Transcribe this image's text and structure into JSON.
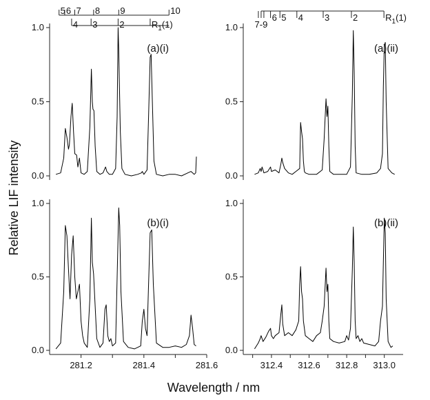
{
  "figure": {
    "ylabel": "Relative LIF intensity",
    "xlabel": "Wavelength / nm"
  },
  "chart_data": [
    {
      "type": "line",
      "panel": "(a)(i)",
      "xlim": [
        281.1,
        281.6
      ],
      "ylim": [
        0.0,
        1.0
      ],
      "y_ticks": [
        0.0,
        0.5,
        1.0
      ],
      "y_tick_labels": [
        "0.0",
        "0.5",
        "1.0"
      ],
      "x_ticks": [],
      "x_tick_labels": [],
      "band_labels": {
        "upper": [
          {
            "label": "5",
            "x": 281.13
          },
          {
            "label": "6",
            "x": 281.148
          },
          {
            "label": "7",
            "x": 281.18
          },
          {
            "label": "8",
            "x": 281.24
          },
          {
            "label": "9",
            "x": 281.32
          },
          {
            "label": "10",
            "x": 281.48
          }
        ],
        "lower": [
          {
            "label": "4",
            "x": 281.17
          },
          {
            "label": "3",
            "x": 281.232
          },
          {
            "label": "2",
            "x": 281.318
          },
          {
            "label": "R1(1)",
            "x": 281.42
          }
        ]
      },
      "series": [
        {
          "x": [
            281.12,
            281.135,
            281.145,
            281.15,
            281.155,
            281.16,
            281.163,
            281.168,
            281.172,
            281.176,
            281.18,
            281.186,
            281.19,
            281.195,
            281.2,
            281.21,
            281.22,
            281.228,
            281.233,
            281.236,
            281.238,
            281.241,
            281.245,
            281.25,
            281.26,
            281.27,
            281.278,
            281.282,
            281.29,
            281.3,
            281.31,
            281.315,
            281.318,
            281.32,
            281.325,
            281.33,
            281.34,
            281.36,
            281.38,
            281.392,
            281.395,
            281.4,
            281.41,
            281.415,
            281.42,
            281.423,
            281.427,
            281.432,
            281.44,
            281.46,
            281.48,
            281.5,
            281.52,
            281.54,
            281.55,
            281.56,
            281.565,
            281.567
          ],
          "y": [
            0.01,
            0.02,
            0.12,
            0.32,
            0.26,
            0.18,
            0.21,
            0.4,
            0.49,
            0.3,
            0.15,
            0.14,
            0.06,
            0.12,
            0.02,
            0.01,
            0.03,
            0.33,
            0.72,
            0.5,
            0.45,
            0.44,
            0.2,
            0.03,
            0.01,
            0.02,
            0.06,
            0.03,
            0.01,
            0.01,
            0.05,
            0.4,
            1.0,
            0.85,
            0.3,
            0.05,
            0.01,
            0.0,
            0.01,
            0.02,
            0.03,
            0.01,
            0.04,
            0.4,
            0.8,
            0.82,
            0.5,
            0.1,
            0.01,
            0.0,
            0.01,
            0.01,
            0.0,
            0.02,
            0.03,
            0.01,
            0.02,
            0.13
          ]
        }
      ]
    },
    {
      "type": "line",
      "panel": "(a)(ii)",
      "xlim": [
        312.25,
        313.1
      ],
      "ylim": [
        0.0,
        1.0
      ],
      "y_ticks": [
        0.0,
        0.5,
        1.0
      ],
      "y_tick_labels": [
        "0.0",
        "0.5",
        "1.0"
      ],
      "x_ticks": [],
      "x_tick_labels": [],
      "band_labels": {
        "upper": [
          {
            "label": "7-9",
            "x": 312.345
          },
          {
            "label": "6",
            "x": 312.395
          },
          {
            "label": "5",
            "x": 312.445
          },
          {
            "label": "4",
            "x": 312.535
          },
          {
            "label": "3",
            "x": 312.675
          },
          {
            "label": "2",
            "x": 312.825
          },
          {
            "label": "R1(1)",
            "x": 312.998
          }
        ]
      },
      "series": [
        {
          "x": [
            312.31,
            312.33,
            312.34,
            312.345,
            312.35,
            312.36,
            312.38,
            312.395,
            312.4,
            312.42,
            312.44,
            312.45,
            312.455,
            312.46,
            312.47,
            312.49,
            312.51,
            312.53,
            312.55,
            312.555,
            312.56,
            312.565,
            312.57,
            312.575,
            312.58,
            312.6,
            312.64,
            312.67,
            312.68,
            312.69,
            312.695,
            312.7,
            312.705,
            312.71,
            312.73,
            312.76,
            312.8,
            312.82,
            312.83,
            312.835,
            312.84,
            312.845,
            312.85,
            312.88,
            312.92,
            312.96,
            312.98,
            312.99,
            312.995,
            313.0,
            313.005,
            313.01,
            313.02,
            313.04,
            313.055
          ],
          "y": [
            0.01,
            0.02,
            0.05,
            0.03,
            0.06,
            0.02,
            0.03,
            0.06,
            0.03,
            0.04,
            0.02,
            0.08,
            0.12,
            0.09,
            0.05,
            0.02,
            0.01,
            0.03,
            0.05,
            0.36,
            0.3,
            0.25,
            0.1,
            0.03,
            0.02,
            0.01,
            0.01,
            0.04,
            0.25,
            0.52,
            0.4,
            0.47,
            0.2,
            0.03,
            0.01,
            0.01,
            0.01,
            0.06,
            0.55,
            0.98,
            0.7,
            0.2,
            0.02,
            0.01,
            0.01,
            0.02,
            0.05,
            0.15,
            0.6,
            0.88,
            0.9,
            0.5,
            0.05,
            0.02,
            0.01
          ]
        }
      ]
    },
    {
      "type": "line",
      "panel": "(b)(i)",
      "xlim": [
        281.1,
        281.6
      ],
      "ylim": [
        0.0,
        1.0
      ],
      "y_ticks": [
        0.0,
        0.5,
        1.0
      ],
      "y_tick_labels": [
        "0.0",
        "0.5",
        "1.0"
      ],
      "x_ticks": [
        281.2,
        281.3,
        281.4,
        281.5,
        281.6
      ],
      "x_tick_labels": [
        "281.2",
        "281.4",
        "281.6"
      ],
      "x_tick_label_values": [
        281.2,
        281.4,
        281.6
      ],
      "series": [
        {
          "x": [
            281.12,
            281.135,
            281.145,
            281.15,
            281.155,
            281.16,
            281.165,
            281.17,
            281.175,
            281.18,
            281.185,
            281.19,
            281.195,
            281.2,
            281.205,
            281.21,
            281.22,
            281.228,
            281.233,
            281.236,
            281.24,
            281.245,
            281.25,
            281.26,
            281.27,
            281.276,
            281.28,
            281.285,
            281.29,
            281.295,
            281.3,
            281.31,
            281.315,
            281.32,
            281.323,
            281.327,
            281.335,
            281.35,
            281.37,
            281.39,
            281.395,
            281.4,
            281.405,
            281.41,
            281.415,
            281.42,
            281.425,
            281.43,
            281.44,
            281.46,
            281.48,
            281.5,
            281.52,
            281.535,
            281.545,
            281.55,
            281.555,
            281.56,
            281.566
          ],
          "y": [
            0.01,
            0.05,
            0.4,
            0.85,
            0.78,
            0.55,
            0.35,
            0.65,
            0.78,
            0.5,
            0.35,
            0.4,
            0.45,
            0.2,
            0.1,
            0.05,
            0.02,
            0.35,
            0.9,
            0.6,
            0.52,
            0.3,
            0.08,
            0.02,
            0.05,
            0.28,
            0.31,
            0.1,
            0.06,
            0.08,
            0.03,
            0.05,
            0.5,
            0.97,
            0.85,
            0.4,
            0.06,
            0.02,
            0.01,
            0.03,
            0.2,
            0.28,
            0.15,
            0.1,
            0.45,
            0.8,
            0.82,
            0.45,
            0.05,
            0.02,
            0.02,
            0.03,
            0.02,
            0.04,
            0.1,
            0.24,
            0.15,
            0.04,
            0.03
          ]
        }
      ]
    },
    {
      "type": "line",
      "panel": "(b)(ii)",
      "xlim": [
        312.25,
        313.1
      ],
      "ylim": [
        0.0,
        1.0
      ],
      "y_ticks": [
        0.0,
        0.5,
        1.0
      ],
      "y_tick_labels": [
        "0.0",
        "0.5",
        "1.0"
      ],
      "x_ticks": [
        312.3,
        312.4,
        312.5,
        312.6,
        312.7,
        312.8,
        312.9,
        313.0
      ],
      "x_tick_labels": [
        "312.4",
        "312.6",
        "312.8",
        "313.0"
      ],
      "x_tick_label_values": [
        312.4,
        312.6,
        312.8,
        313.0
      ],
      "series": [
        {
          "x": [
            312.31,
            312.33,
            312.34,
            312.345,
            312.355,
            312.37,
            312.385,
            312.395,
            312.4,
            312.41,
            312.42,
            312.44,
            312.45,
            312.455,
            312.46,
            312.47,
            312.49,
            312.51,
            312.53,
            312.545,
            312.55,
            312.555,
            312.56,
            312.565,
            312.57,
            312.58,
            312.6,
            312.62,
            312.64,
            312.66,
            312.67,
            312.68,
            312.69,
            312.695,
            312.7,
            312.705,
            312.71,
            312.73,
            312.76,
            312.79,
            312.8,
            312.81,
            312.82,
            312.83,
            312.835,
            312.84,
            312.845,
            312.85,
            312.86,
            312.87,
            312.88,
            312.89,
            312.92,
            312.95,
            312.97,
            312.98,
            312.99,
            312.995,
            313.0,
            313.005,
            313.01,
            313.02,
            313.035,
            313.045
          ],
          "y": [
            0.01,
            0.05,
            0.08,
            0.1,
            0.06,
            0.09,
            0.13,
            0.15,
            0.1,
            0.08,
            0.1,
            0.12,
            0.25,
            0.31,
            0.18,
            0.1,
            0.12,
            0.1,
            0.14,
            0.2,
            0.45,
            0.57,
            0.4,
            0.35,
            0.2,
            0.1,
            0.08,
            0.06,
            0.1,
            0.12,
            0.2,
            0.3,
            0.56,
            0.4,
            0.45,
            0.2,
            0.08,
            0.06,
            0.05,
            0.06,
            0.1,
            0.07,
            0.15,
            0.55,
            0.84,
            0.6,
            0.2,
            0.08,
            0.1,
            0.06,
            0.08,
            0.05,
            0.04,
            0.03,
            0.06,
            0.2,
            0.3,
            0.6,
            0.9,
            0.8,
            0.35,
            0.06,
            0.02,
            0.03
          ]
        }
      ]
    }
  ]
}
